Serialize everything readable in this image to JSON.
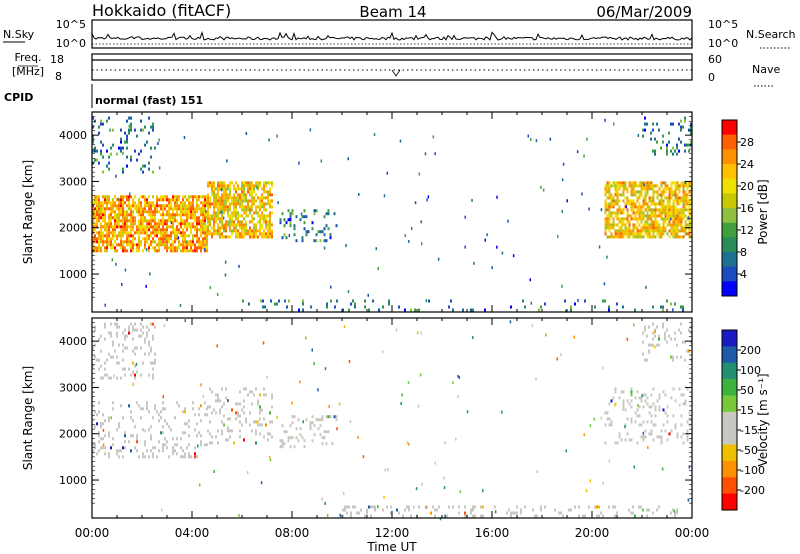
{
  "header": {
    "station": "Hokkaido (fitACF)",
    "beam": "Beam 14",
    "date": "06/Mar/2009"
  },
  "noise_panel": {
    "left_label": "N.Sky",
    "right_label": "N.Search",
    "ticks": [
      "10^5",
      "10^0"
    ]
  },
  "freq_panel": {
    "left_label_line1": "Freq.",
    "left_label_line2": "[MHz]",
    "left_ticks": [
      "18",
      "8"
    ],
    "right_label": "Nave",
    "right_ticks": [
      "60",
      "0"
    ]
  },
  "cpid": {
    "label": "CPID",
    "value": "normal (fast) 151"
  },
  "time_axis": {
    "title": "Time UT",
    "tick_labels": [
      "00:00",
      "04:00",
      "08:00",
      "12:00",
      "16:00",
      "20:00",
      "00:00"
    ]
  },
  "power_colorbar": {
    "title": "Power [dB]",
    "tick_labels": [
      "28",
      "24",
      "20",
      "16",
      "12",
      "8",
      "4"
    ],
    "colors": [
      "#ff0000",
      "#ff6000",
      "#ff9000",
      "#ffc000",
      "#f0e000",
      "#c8c800",
      "#90c040",
      "#40a040",
      "#2a8c5a",
      "#1e7090",
      "#1a4cc0",
      "#0000ff"
    ]
  },
  "velocity_colorbar": {
    "title": "Velocity [m s⁻¹]",
    "tick_labels": [
      "200",
      "100",
      "50",
      "15",
      "-15",
      "-50",
      "-100",
      "-200"
    ],
    "colors": [
      "#1a1ac0",
      "#1e5aa8",
      "#209070",
      "#3cb43c",
      "#78c83c",
      "#c8c8c0",
      "#c8c8c0",
      "#f0c000",
      "#ff9000",
      "#ff5000",
      "#ff0000"
    ]
  },
  "chart_data": [
    {
      "type": "heatmap",
      "title": "Power",
      "xlabel": "Time UT",
      "ylabel": "Slant Range [km]",
      "x_range_hours": [
        0,
        24
      ],
      "ylim_km": [
        180,
        4500
      ],
      "y_tick_labels": [
        "4000",
        "3000",
        "2000",
        "1000"
      ],
      "y_ticks_km": [
        4000,
        3000,
        2000,
        1000
      ],
      "colorbar_range_db": [
        0,
        30
      ],
      "regions": [
        {
          "t": [
            0.0,
            4.6
          ],
          "r": [
            1500,
            2700
          ],
          "level": "high",
          "value_db": 22
        },
        {
          "t": [
            4.6,
            7.2
          ],
          "r": [
            1800,
            3000
          ],
          "level": "high",
          "value_db": 20
        },
        {
          "t": [
            0.0,
            2.5
          ],
          "r": [
            3200,
            4400
          ],
          "level": "weak",
          "value_db": 10
        },
        {
          "t": [
            7.5,
            9.8
          ],
          "r": [
            1700,
            2400
          ],
          "level": "weak",
          "value_db": 6
        },
        {
          "t": [
            20.5,
            24.0
          ],
          "r": [
            1800,
            3000
          ],
          "level": "high",
          "value_db": 20
        },
        {
          "t": [
            22.0,
            24.0
          ],
          "r": [
            3600,
            4400
          ],
          "level": "weak",
          "value_db": 8
        },
        {
          "t": [
            6.0,
            24.0
          ],
          "r": [
            200,
            450
          ],
          "level": "ground",
          "value_db": 6
        }
      ]
    },
    {
      "type": "heatmap",
      "title": "Velocity",
      "xlabel": "Time UT",
      "ylabel": "Slant Range [km]",
      "x_range_hours": [
        0,
        24
      ],
      "ylim_km": [
        180,
        4500
      ],
      "y_tick_labels": [
        "4000",
        "3000",
        "2000",
        "1000"
      ],
      "y_ticks_km": [
        4000,
        3000,
        2000,
        1000
      ],
      "colorbar_range_ms": [
        -200,
        200
      ],
      "regions": [
        {
          "t": [
            0.0,
            4.6
          ],
          "r": [
            1500,
            2700
          ],
          "value_ms": 0
        },
        {
          "t": [
            4.6,
            7.2
          ],
          "r": [
            1800,
            3000
          ],
          "value_ms": 0
        },
        {
          "t": [
            0.0,
            2.5
          ],
          "r": [
            3200,
            4400
          ],
          "value_ms": 0
        },
        {
          "t": [
            7.5,
            9.8
          ],
          "r": [
            1700,
            2400
          ],
          "value_ms": 0
        },
        {
          "t": [
            20.5,
            24.0
          ],
          "r": [
            1800,
            3000
          ],
          "value_ms": 0
        },
        {
          "t": [
            22.0,
            24.0
          ],
          "r": [
            3600,
            4400
          ],
          "value_ms": 0
        },
        {
          "t": [
            10.0,
            24.0
          ],
          "r": [
            200,
            450
          ],
          "value_ms": -40
        }
      ]
    }
  ]
}
